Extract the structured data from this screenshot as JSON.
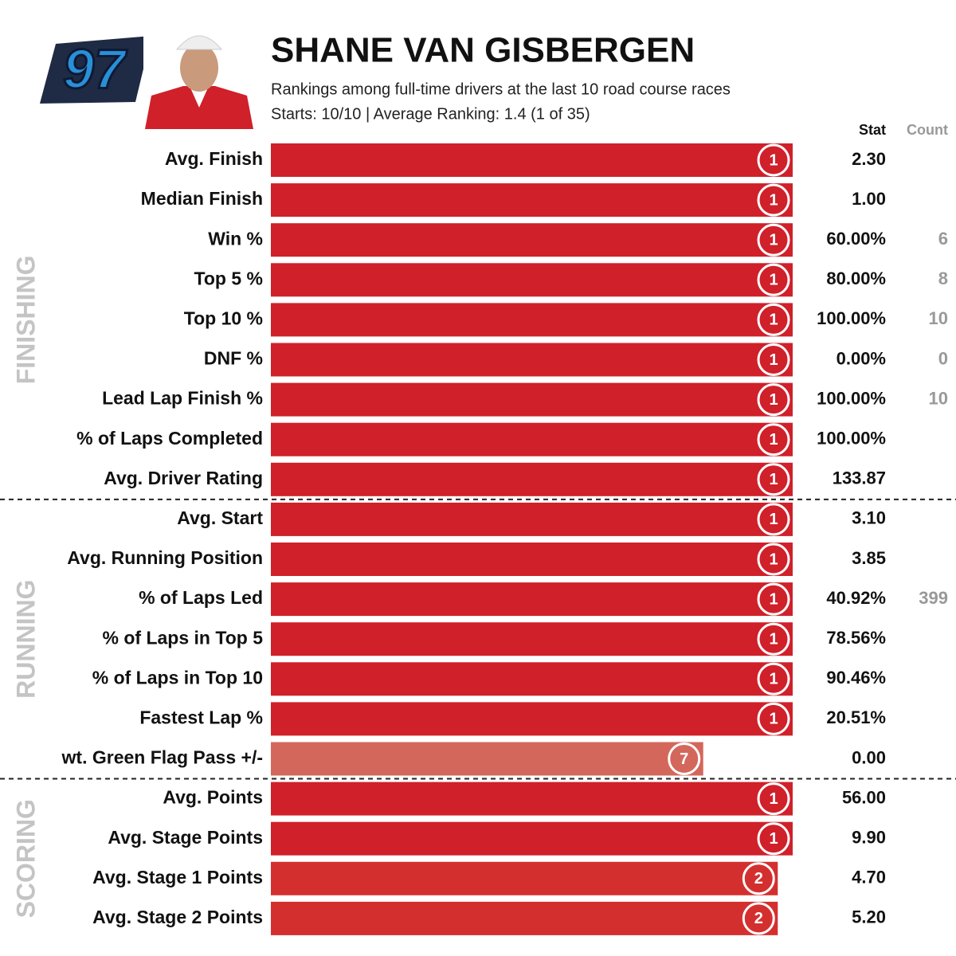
{
  "chart_data": {
    "type": "bar",
    "number": "97",
    "title": "SHANE VAN GISBERGEN",
    "subtitle": "Rankings among full-time drivers at the last 10 road course races",
    "summary": "Starts: 10/10 | Average Ranking: 1.4 (1 of 35)",
    "stat_header": "Stat",
    "count_header": "Count",
    "xlim": [
      36,
      1
    ],
    "groups": [
      {
        "name": "FINISHING",
        "categories": [
          "Avg. Finish",
          "Median Finish",
          "Win %",
          "Top 5 %",
          "Top 10 %",
          "DNF %",
          "Lead Lap Finish %",
          "% of Laps Completed",
          "Avg. Driver Rating"
        ],
        "values": [
          1,
          1,
          1,
          1,
          1,
          1,
          1,
          1,
          1
        ],
        "stats": [
          "2.30",
          "1.00",
          "60.00%",
          "80.00%",
          "100.00%",
          "0.00%",
          "100.00%",
          "100.00%",
          "133.87"
        ],
        "counts": [
          null,
          null,
          6,
          8,
          10,
          0,
          10,
          null,
          null
        ],
        "colors": [
          "#d0202a",
          "#d0202a",
          "#d0202a",
          "#d0202a",
          "#d0202a",
          "#d0202a",
          "#d0202a",
          "#d0202a",
          "#d0202a"
        ]
      },
      {
        "name": "RUNNING",
        "categories": [
          "Avg. Start",
          "Avg. Running Position",
          "% of Laps Led",
          "% of Laps in Top 5",
          "% of Laps in Top 10",
          "Fastest Lap %",
          "wt. Green Flag Pass +/-"
        ],
        "values": [
          1,
          1,
          1,
          1,
          1,
          1,
          7
        ],
        "stats": [
          "3.10",
          "3.85",
          "40.92%",
          "78.56%",
          "90.46%",
          "20.51%",
          "0.00"
        ],
        "counts": [
          null,
          null,
          399,
          null,
          null,
          null,
          null
        ],
        "colors": [
          "#d0202a",
          "#d0202a",
          "#d0202a",
          "#d0202a",
          "#d0202a",
          "#d0202a",
          "#d4675c"
        ]
      },
      {
        "name": "SCORING",
        "categories": [
          "Avg. Points",
          "Avg. Stage Points",
          "Avg. Stage 1 Points",
          "Avg. Stage 2 Points"
        ],
        "values": [
          1,
          1,
          2,
          2
        ],
        "stats": [
          "56.00",
          "9.90",
          "4.70",
          "5.20"
        ],
        "counts": [
          null,
          null,
          null,
          null
        ],
        "colors": [
          "#d0202a",
          "#d0202a",
          "#d42f2f",
          "#d42f2f"
        ]
      }
    ]
  }
}
